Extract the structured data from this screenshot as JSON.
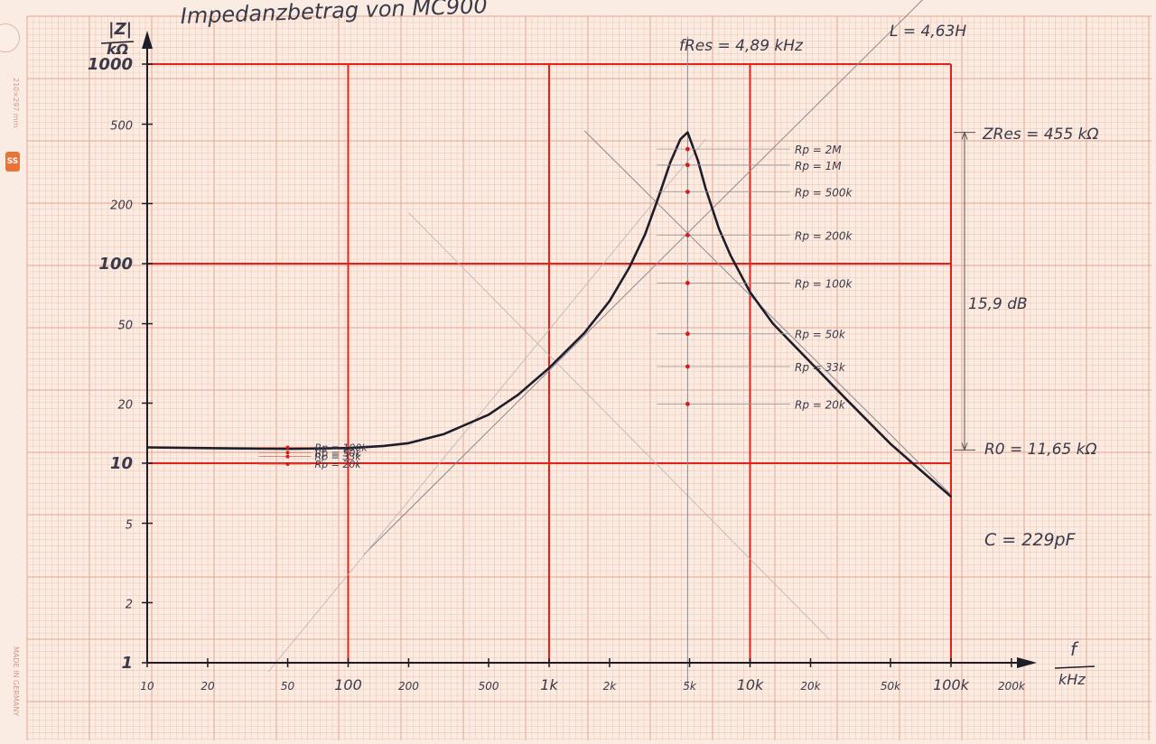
{
  "page": {
    "margin_top": "210×297 mm",
    "margin_bottom": "MADE IN GERMANY",
    "logo": "SS"
  },
  "chart_data": {
    "type": "line",
    "title": "Impedanzbetrag von MC900",
    "xscale": "log",
    "yscale": "log",
    "xlabel_num": "f",
    "xlabel_den": "kHz",
    "ylabel_num": "|Z|",
    "ylabel_den": "kΩ",
    "xlim": [
      10,
      200000
    ],
    "ylim": [
      1,
      1000
    ],
    "xticks": [
      {
        "v": 10,
        "label": "10",
        "major": false
      },
      {
        "v": 20,
        "label": "20",
        "major": false
      },
      {
        "v": 50,
        "label": "50",
        "major": false
      },
      {
        "v": 100,
        "label": "100",
        "major": true
      },
      {
        "v": 200,
        "label": "200",
        "major": false
      },
      {
        "v": 500,
        "label": "500",
        "major": false
      },
      {
        "v": 1000,
        "label": "1k",
        "major": true
      },
      {
        "v": 2000,
        "label": "2k",
        "major": false
      },
      {
        "v": 5000,
        "label": "5k",
        "major": false
      },
      {
        "v": 10000,
        "label": "10k",
        "major": true
      },
      {
        "v": 20000,
        "label": "20k",
        "major": false
      },
      {
        "v": 50000,
        "label": "50k",
        "major": false
      },
      {
        "v": 100000,
        "label": "100k",
        "major": true
      },
      {
        "v": 200000,
        "label": "200k",
        "major": false
      }
    ],
    "yticks": [
      {
        "v": 1,
        "label": "1",
        "major": true
      },
      {
        "v": 2,
        "label": "2",
        "major": false
      },
      {
        "v": 5,
        "label": "5",
        "major": false
      },
      {
        "v": 10,
        "label": "10",
        "major": true
      },
      {
        "v": 20,
        "label": "20",
        "major": false
      },
      {
        "v": 50,
        "label": "50",
        "major": false
      },
      {
        "v": 100,
        "label": "100",
        "major": true
      },
      {
        "v": 200,
        "label": "200",
        "major": false
      },
      {
        "v": 500,
        "label": "500",
        "major": false
      },
      {
        "v": 1000,
        "label": "1000",
        "major": true
      }
    ],
    "series": [
      {
        "name": "|Z| MC900",
        "x": [
          10,
          20,
          50,
          100,
          150,
          200,
          300,
          500,
          700,
          1000,
          1500,
          2000,
          2500,
          3000,
          3500,
          4000,
          4500,
          4890,
          5500,
          6000,
          7000,
          8000,
          10000,
          13000,
          20000,
          30000,
          50000,
          70000,
          100000
        ],
        "y": [
          12,
          11.9,
          11.8,
          11.9,
          12.2,
          12.6,
          14,
          17.5,
          22,
          30,
          45,
          65,
          95,
          140,
          215,
          320,
          420,
          455,
          330,
          240,
          150,
          110,
          72,
          50,
          32,
          21,
          12.5,
          9.3,
          6.8
        ]
      }
    ],
    "asymptotes": [
      {
        "label": "L = 4,63H",
        "x": [
          120,
          100000
        ],
        "y": [
          3.49,
          2909
        ]
      },
      {
        "label": "C = 229pF",
        "x": [
          1500,
          100000
        ],
        "y": [
          463,
          6.95
        ]
      }
    ],
    "rp_markers_low": [
      {
        "label": "Rp = 100k",
        "y": 12.0
      },
      {
        "label": "Rp = 50k",
        "y": 11.3
      },
      {
        "label": "Rp = 33k",
        "y": 10.8
      },
      {
        "label": "Rp = 20k",
        "y": 9.9
      }
    ],
    "rp_markers_res": [
      {
        "label": "Rp = 2M",
        "y": 375
      },
      {
        "label": "Rp = 1M",
        "y": 312
      },
      {
        "label": "Rp = 500k",
        "y": 229
      },
      {
        "label": "Rp = 200k",
        "y": 139
      },
      {
        "label": "Rp = 100k",
        "y": 80
      },
      {
        "label": "Rp = 50k",
        "y": 44.5
      },
      {
        "label": "Rp = 33k",
        "y": 30.5
      },
      {
        "label": "Rp = 20k",
        "y": 19.8
      }
    ],
    "annotations": {
      "f_res": "fRes = 4,89 kHz",
      "z_res": "ZRes = 455 kΩ",
      "r0": "R0 = 11,65 kΩ",
      "db": "15,9 dB",
      "L": "L = 4,63H",
      "C": "C = 229pF"
    },
    "colors": {
      "paper": "#fbece3",
      "grid_fine": "#f0c2ae",
      "grid_mid": "#e7a58c",
      "grid_major": "#e0231c",
      "curve": "#1e1e2a",
      "pencil": "#8a8a93",
      "marker": "#d71a1a"
    }
  }
}
